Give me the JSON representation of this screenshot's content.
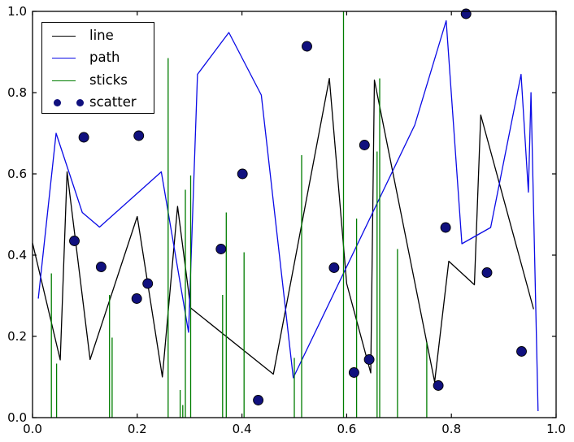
{
  "figure": {
    "background": "#ffffff",
    "frame_color": "#000000"
  },
  "chart_data": {
    "type": "mixed",
    "title": "",
    "xlabel": "",
    "ylabel": "",
    "xlim": [
      0.0,
      1.0
    ],
    "ylim": [
      0.0,
      1.0
    ],
    "grid": false,
    "xticks": {
      "values": [
        0.0,
        0.2,
        0.4,
        0.6,
        0.8,
        1.0
      ],
      "labels": [
        "0.0",
        "0.2",
        "0.4",
        "0.6",
        "0.8",
        "1.0"
      ]
    },
    "yticks": {
      "values": [
        0.0,
        0.2,
        0.4,
        0.6,
        0.8,
        1.0
      ],
      "labels": [
        "0.0",
        "0.2",
        "0.4",
        "0.6",
        "0.8",
        "1.0"
      ]
    },
    "legend": {
      "position": "upper-left",
      "entries": [
        "line",
        "path",
        "sticks",
        "scatter"
      ]
    },
    "series": [
      {
        "name": "line",
        "type": "line",
        "color": "#000000",
        "points": [
          [
            0.0,
            0.43
          ],
          [
            0.053,
            0.142
          ],
          [
            0.066,
            0.605
          ],
          [
            0.11,
            0.143
          ],
          [
            0.2,
            0.495
          ],
          [
            0.248,
            0.1
          ],
          [
            0.277,
            0.52
          ],
          [
            0.302,
            0.27
          ],
          [
            0.46,
            0.107
          ],
          [
            0.567,
            0.835
          ],
          [
            0.6,
            0.33
          ],
          [
            0.646,
            0.11
          ],
          [
            0.653,
            0.831
          ],
          [
            0.768,
            0.088
          ],
          [
            0.795,
            0.385
          ],
          [
            0.844,
            0.327
          ],
          [
            0.856,
            0.745
          ],
          [
            0.957,
            0.267
          ]
        ]
      },
      {
        "name": "path",
        "type": "line",
        "color": "#0a0ae6",
        "points": [
          [
            0.011,
            0.293
          ],
          [
            0.045,
            0.7
          ],
          [
            0.095,
            0.505
          ],
          [
            0.128,
            0.469
          ],
          [
            0.246,
            0.605
          ],
          [
            0.298,
            0.21
          ],
          [
            0.315,
            0.845
          ],
          [
            0.375,
            0.948
          ],
          [
            0.437,
            0.794
          ],
          [
            0.498,
            0.098
          ],
          [
            0.73,
            0.72
          ],
          [
            0.79,
            0.977
          ],
          [
            0.82,
            0.428
          ],
          [
            0.875,
            0.468
          ],
          [
            0.933,
            0.845
          ],
          [
            0.947,
            0.555
          ],
          [
            0.952,
            0.8
          ],
          [
            0.9655,
            0.016
          ]
        ]
      },
      {
        "name": "sticks",
        "type": "sticks",
        "color": "#007d00",
        "baseline": 0.0,
        "points": [
          [
            0.036,
            0.355
          ],
          [
            0.046,
            0.133
          ],
          [
            0.147,
            0.302
          ],
          [
            0.152,
            0.197
          ],
          [
            0.259,
            0.885
          ],
          [
            0.282,
            0.068
          ],
          [
            0.287,
            0.031
          ],
          [
            0.292,
            0.561
          ],
          [
            0.302,
            0.596
          ],
          [
            0.363,
            0.302
          ],
          [
            0.37,
            0.505
          ],
          [
            0.404,
            0.407
          ],
          [
            0.5,
            0.147
          ],
          [
            0.514,
            0.646
          ],
          [
            0.594,
            1.0
          ],
          [
            0.619,
            0.49
          ],
          [
            0.658,
            0.655
          ],
          [
            0.663,
            0.835
          ],
          [
            0.697,
            0.415
          ],
          [
            0.753,
            0.185
          ]
        ]
      },
      {
        "name": "scatter",
        "type": "scatter",
        "color": "#10107e",
        "edge_color": "#000000",
        "points": [
          [
            0.08,
            0.435
          ],
          [
            0.098,
            0.69
          ],
          [
            0.131,
            0.371
          ],
          [
            0.199,
            0.293
          ],
          [
            0.203,
            0.694
          ],
          [
            0.22,
            0.33
          ],
          [
            0.36,
            0.415
          ],
          [
            0.401,
            0.6
          ],
          [
            0.431,
            0.043
          ],
          [
            0.524,
            0.914
          ],
          [
            0.576,
            0.369
          ],
          [
            0.614,
            0.111
          ],
          [
            0.634,
            0.671
          ],
          [
            0.643,
            0.143
          ],
          [
            0.775,
            0.079
          ],
          [
            0.789,
            0.468
          ],
          [
            0.828,
            0.994
          ],
          [
            0.868,
            0.357
          ],
          [
            0.934,
            0.163
          ]
        ]
      }
    ]
  }
}
